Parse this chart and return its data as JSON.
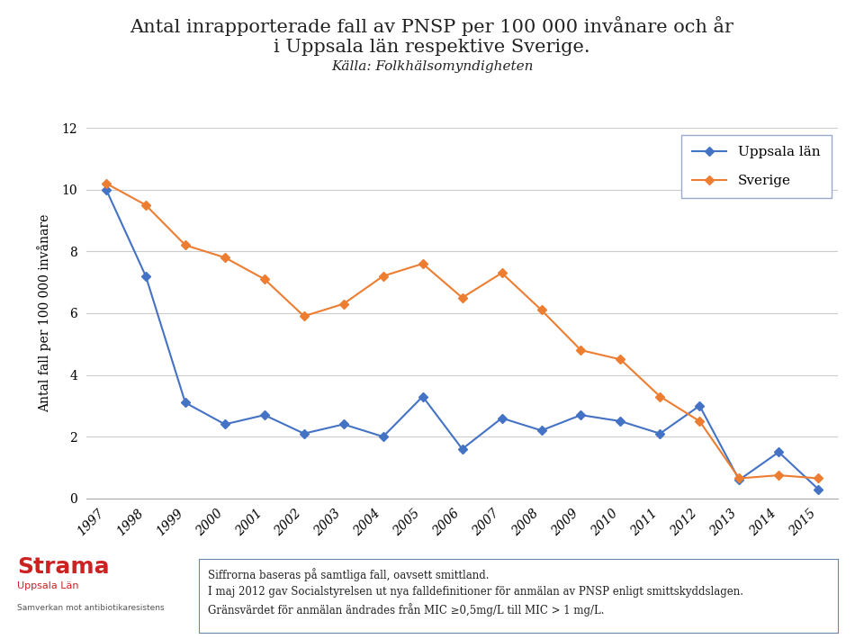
{
  "title_line1": "Antal inrapporterade fall av PNSP per 100 000 invånare och år",
  "title_line2": "i Uppsala län respektive Sverige.",
  "subtitle": "Källa: Folkhälsomyndigheten",
  "years": [
    1997,
    1998,
    1999,
    2000,
    2001,
    2002,
    2003,
    2004,
    2005,
    2006,
    2007,
    2008,
    2009,
    2010,
    2011,
    2012,
    2013,
    2014,
    2015
  ],
  "uppsala": [
    10.0,
    7.2,
    3.1,
    2.4,
    2.7,
    2.1,
    2.4,
    2.0,
    3.3,
    1.6,
    2.6,
    2.2,
    2.7,
    2.5,
    2.1,
    3.0,
    0.6,
    1.5,
    0.3
  ],
  "sverige": [
    10.2,
    9.5,
    8.2,
    7.8,
    7.1,
    5.9,
    6.3,
    7.2,
    7.6,
    6.5,
    7.3,
    6.1,
    4.8,
    4.5,
    3.3,
    2.5,
    0.65,
    0.75,
    0.65
  ],
  "uppsala_color": "#4472C4",
  "sverige_color": "#ED7D31",
  "ylabel": "Antal fall per 100 000 invånare",
  "ylim": [
    0,
    12
  ],
  "yticks": [
    0,
    2,
    4,
    6,
    8,
    10,
    12
  ],
  "legend_labels": [
    "Uppsala län",
    "Sverige"
  ],
  "footer_text1": "Siffrorna baseras på samtliga fall, oavsett smittland.",
  "footer_text2": "I maj 2012 gav Socialstyrelsen ut nya falldefinitioner för anmälan av PNSP enligt smittskyddslagen.",
  "footer_text3": "Gränsvärdet för anmälan ändrades från MIC ≥0,5mg/L till MIC > 1 mg/L.",
  "background_color": "#FFFFFF",
  "grid_color": "#CCCCCC",
  "title_fontsize": 15,
  "subtitle_fontsize": 11,
  "ylabel_fontsize": 10,
  "tick_fontsize": 10,
  "legend_fontsize": 11,
  "footer_fontsize": 8.5
}
